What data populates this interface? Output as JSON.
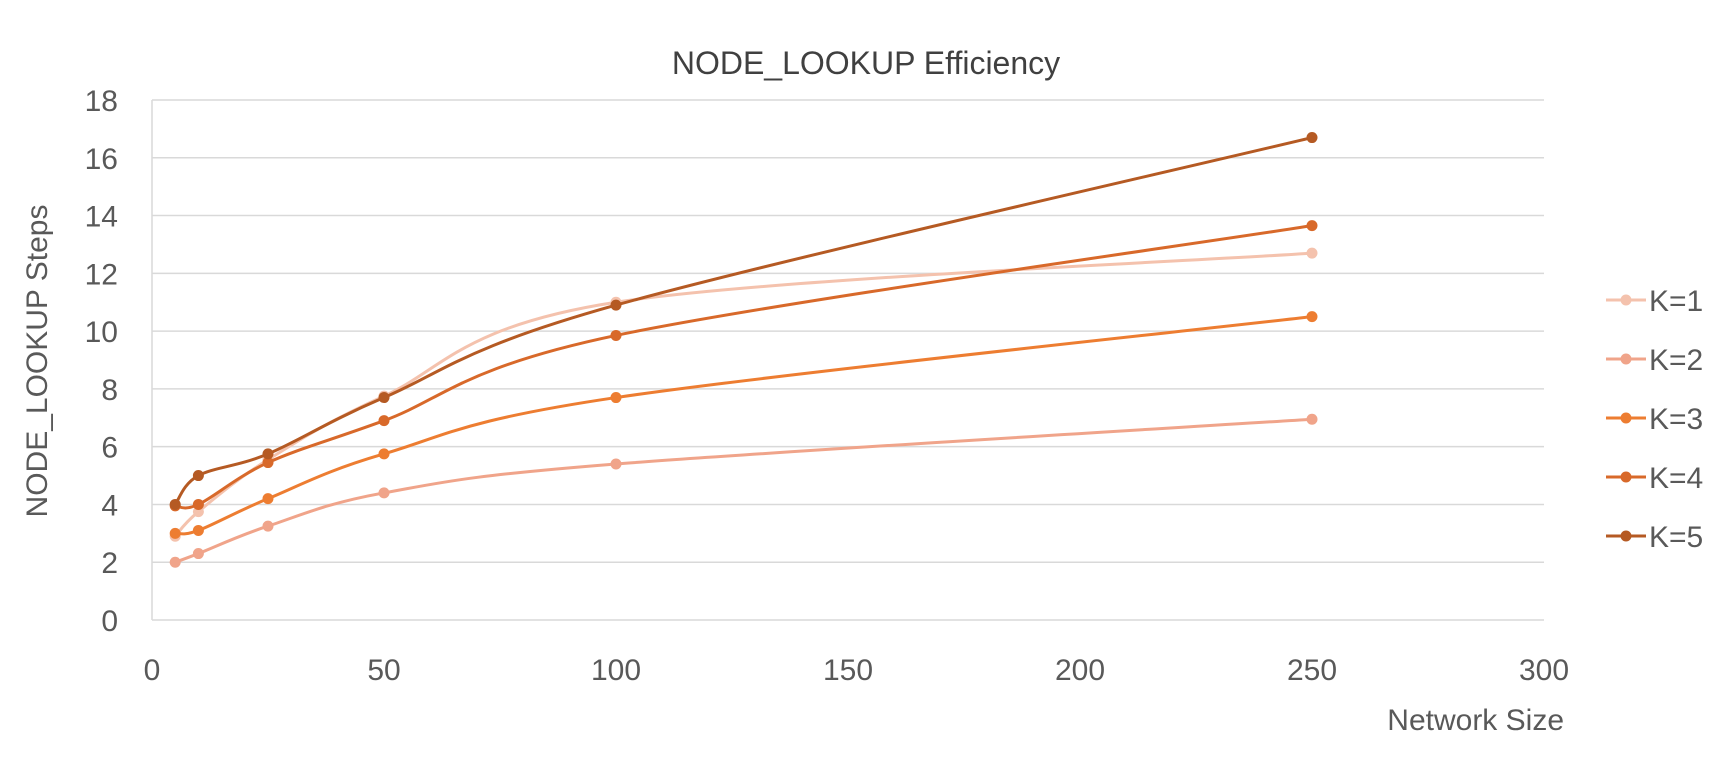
{
  "chart_data": {
    "type": "line",
    "title": "NODE_LOOKUP Efficiency",
    "xlabel": "Network Size",
    "ylabel": "NODE_LOOKUP Steps",
    "x": [
      5,
      10,
      25,
      50,
      100,
      250
    ],
    "xlim": [
      0,
      300
    ],
    "ylim": [
      0,
      18
    ],
    "x_ticks": [
      "0",
      "50",
      "100",
      "150",
      "200",
      "250",
      "300"
    ],
    "y_ticks": [
      "0",
      "2",
      "4",
      "6",
      "8",
      "10",
      "12",
      "14",
      "16",
      "18"
    ],
    "grid": true,
    "smooth": true,
    "legend_position": "right",
    "series": [
      {
        "name": "K=1",
        "color": "#f4c2ad",
        "values": [
          2.9,
          3.75,
          5.55,
          7.75,
          11.0,
          12.7
        ]
      },
      {
        "name": "K=2",
        "color": "#f0a48a",
        "values": [
          2.0,
          2.3,
          3.25,
          4.4,
          5.4,
          6.95
        ]
      },
      {
        "name": "K=3",
        "color": "#ed7d31",
        "values": [
          3.0,
          3.1,
          4.2,
          5.75,
          7.7,
          10.5
        ]
      },
      {
        "name": "K=4",
        "color": "#d8692a",
        "values": [
          3.95,
          4.0,
          5.45,
          6.9,
          9.85,
          13.65
        ]
      },
      {
        "name": "K=5",
        "color": "#b55a23",
        "values": [
          4.0,
          5.0,
          5.75,
          7.7,
          10.9,
          16.7
        ]
      }
    ]
  }
}
